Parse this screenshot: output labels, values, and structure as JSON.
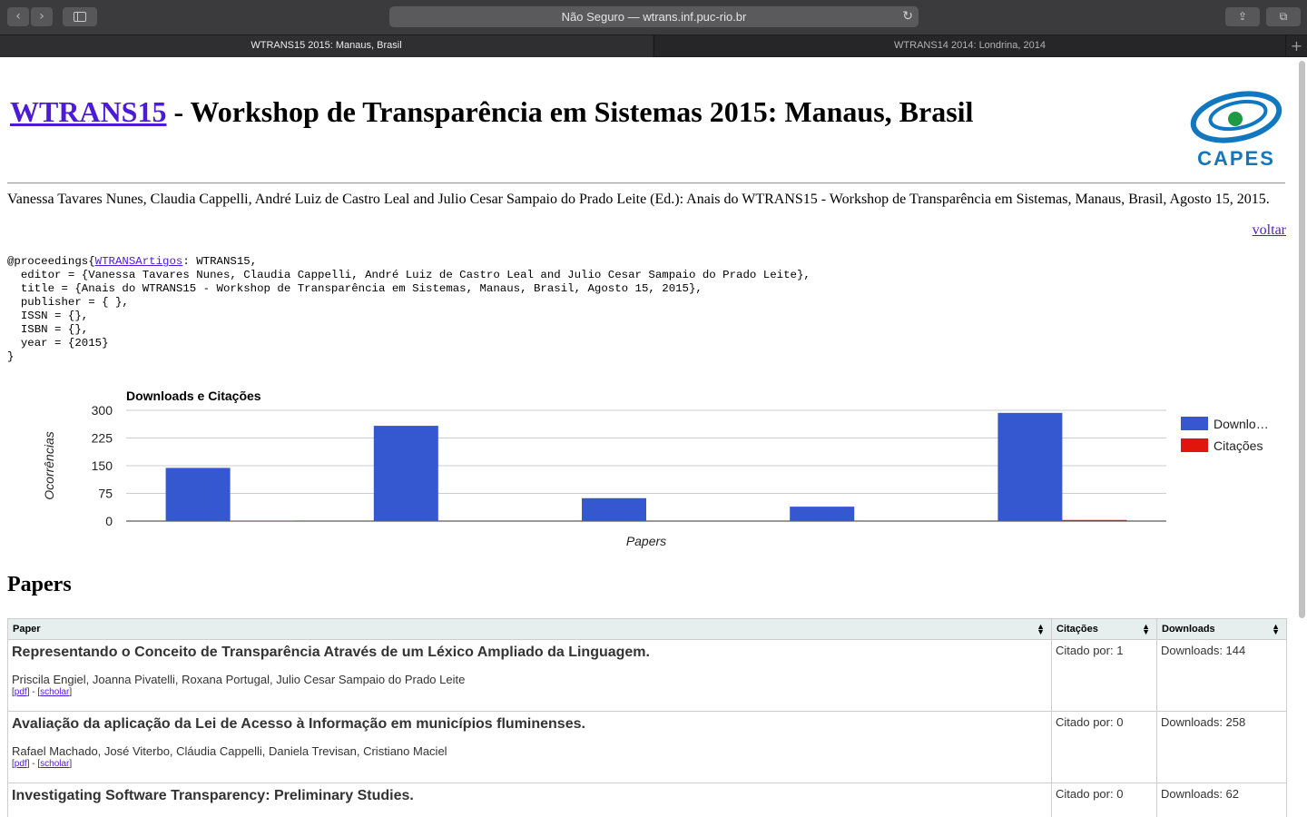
{
  "browser": {
    "url": "Não Seguro — wtrans.inf.puc-rio.br",
    "tabs": [
      {
        "label": "WTRANS15 2015: Manaus, Brasil",
        "active": true
      },
      {
        "label": "WTRANS14 2014: Londrina, 2014",
        "active": false
      }
    ]
  },
  "header": {
    "title_link": "WTRANS15",
    "title_rest": " - Workshop de Transparência em Sistemas 2015: Manaus, Brasil",
    "logo_text": "CAPES",
    "citation": "Vanessa Tavares Nunes, Claudia Cappelli, André Luiz de Castro Leal and Julio Cesar Sampaio do Prado Leite (Ed.): Anais do WTRANS15 - Workshop de Transparência em Sistemas, Manaus, Brasil, Agosto 15, 2015.",
    "voltar": "voltar"
  },
  "bibtex": {
    "prefix": "@proceedings{",
    "key": "WTRANSArtigos",
    "body": ": WTRANS15,\n  editor = {Vanessa Tavares Nunes, Claudia Cappelli, André Luiz de Castro Leal and Julio Cesar Sampaio do Prado Leite},\n  title = {Anais do WTRANS15 - Workshop de Transparência em Sistemas, Manaus, Brasil, Agosto 15, 2015},\n  publisher = { },\n  ISSN = {},\n  ISBN = {},\n  year = {2015}\n}"
  },
  "chart_data": {
    "type": "bar",
    "title": "Downloads e Citações",
    "xlabel": "Papers",
    "ylabel": "Ocorrências",
    "ylim": [
      0,
      300
    ],
    "yticks": [
      0,
      75,
      150,
      225,
      300
    ],
    "categories": [
      "",
      "",
      "",
      "",
      ""
    ],
    "series": [
      {
        "name": "Downlo…",
        "color": "#3557cf",
        "values": [
          144,
          258,
          62,
          39,
          293
        ]
      },
      {
        "name": "Citações",
        "color": "#e0150c",
        "values": [
          1,
          0,
          0,
          0,
          3
        ]
      }
    ],
    "legend": "right",
    "grid": true
  },
  "papers": {
    "heading": "Papers",
    "columns": [
      "Paper",
      "Citações",
      "Downloads"
    ],
    "rows": [
      {
        "title": "Representando o Conceito de Transparência Através de um Léxico Ampliado da Linguagem.",
        "authors": "Priscila Engiel, Joanna Pivatelli, Roxana Portugal, Julio Cesar Sampaio do Prado Leite",
        "pdf": "pdf",
        "scholar": "scholar",
        "sep": " - ",
        "citations": "Citado por: 1",
        "downloads": "Downloads: 144"
      },
      {
        "title": "Avaliação da aplicação da Lei de Acesso à Informação em municípios fluminenses.",
        "authors": "Rafael Machado, José Viterbo, Cláudia Cappelli, Daniela Trevisan, Cristiano Maciel",
        "pdf": "pdf",
        "scholar": "scholar",
        "sep": " - ",
        "citations": "Citado por: 0",
        "downloads": "Downloads: 258"
      },
      {
        "title": "Investigating Software Transparency: Preliminary Studies.",
        "authors": "",
        "pdf": "",
        "scholar": "",
        "sep": "",
        "citations": "Citado por: 0",
        "downloads": "Downloads: 62"
      }
    ]
  }
}
